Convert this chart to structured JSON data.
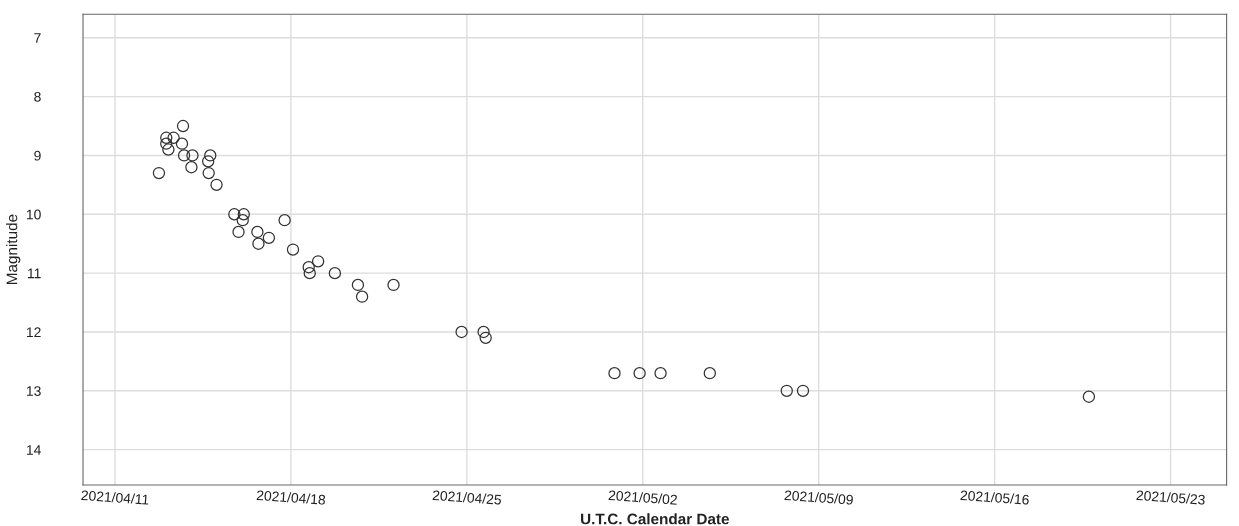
{
  "chart_data": {
    "type": "scatter",
    "xlabel": "U.T.C. Calendar Date",
    "ylabel": "Magnitude",
    "x": [
      "2021-04-12T18:00",
      "2021-04-13T01:00",
      "2021-04-13T03:00",
      "2021-04-13T08:00",
      "2021-04-13T01:00",
      "2021-04-13T17:00",
      "2021-04-13T16:00",
      "2021-04-13T18:00",
      "2021-04-14T01:00",
      "2021-04-14T02:00",
      "2021-04-14T17:00",
      "2021-04-14T17:30",
      "2021-04-14T19:00",
      "2021-04-15T01:00",
      "2021-04-15T18:00",
      "2021-04-15T22:00",
      "2021-04-16T02:00",
      "2021-04-16T03:00",
      "2021-04-16T16:00",
      "2021-04-16T17:00",
      "2021-04-17T03:00",
      "2021-04-17T18:00",
      "2021-04-18T02:00",
      "2021-04-18T17:00",
      "2021-04-18T18:00",
      "2021-04-19T02:00",
      "2021-04-19T18:00",
      "2021-04-20T16:00",
      "2021-04-20T20:00",
      "2021-04-22T02:00",
      "2021-04-24T19:00",
      "2021-04-25T16:00",
      "2021-04-25T18:00",
      "2021-04-30T21:00",
      "2021-05-01T21:00",
      "2021-05-02T17:00",
      "2021-05-04T16:00",
      "2021-05-07T17:30",
      "2021-05-08T09:00",
      "2021-05-19T18:00"
    ],
    "series": [
      {
        "color": "#333333",
        "values": [
          9.3,
          8.7,
          8.9,
          8.7,
          8.8,
          8.5,
          8.8,
          9.0,
          9.2,
          9.0,
          9.1,
          9.3,
          9.0,
          9.5,
          10.0,
          10.3,
          10.1,
          10.0,
          10.3,
          10.5,
          10.4,
          10.1,
          10.6,
          10.9,
          11.0,
          10.8,
          11.0,
          11.2,
          11.4,
          11.2,
          12.0,
          12.0,
          12.1,
          12.7,
          12.7,
          12.7,
          12.7,
          13.0,
          13.0,
          13.1
        ]
      }
    ],
    "xlim": [
      "2021-04-09T17:30",
      "2021-05-25T05:30"
    ],
    "xticks": [
      {
        "value": "2021-04-11",
        "label": "2021/04/11"
      },
      {
        "value": "2021-04-18",
        "label": "2021/04/18"
      },
      {
        "value": "2021-04-25",
        "label": "2021/04/25"
      },
      {
        "value": "2021-05-02",
        "label": "2021/05/02"
      },
      {
        "value": "2021-05-09",
        "label": "2021/05/09"
      },
      {
        "value": "2021-05-16",
        "label": "2021/05/16"
      },
      {
        "value": "2021-05-23",
        "label": "2021/05/23"
      }
    ],
    "ylim": [
      14.6,
      6.6
    ],
    "yticks": [
      7,
      8,
      9,
      10,
      11,
      12,
      13,
      14
    ],
    "grid": true,
    "marker": "circle",
    "legend": false
  }
}
